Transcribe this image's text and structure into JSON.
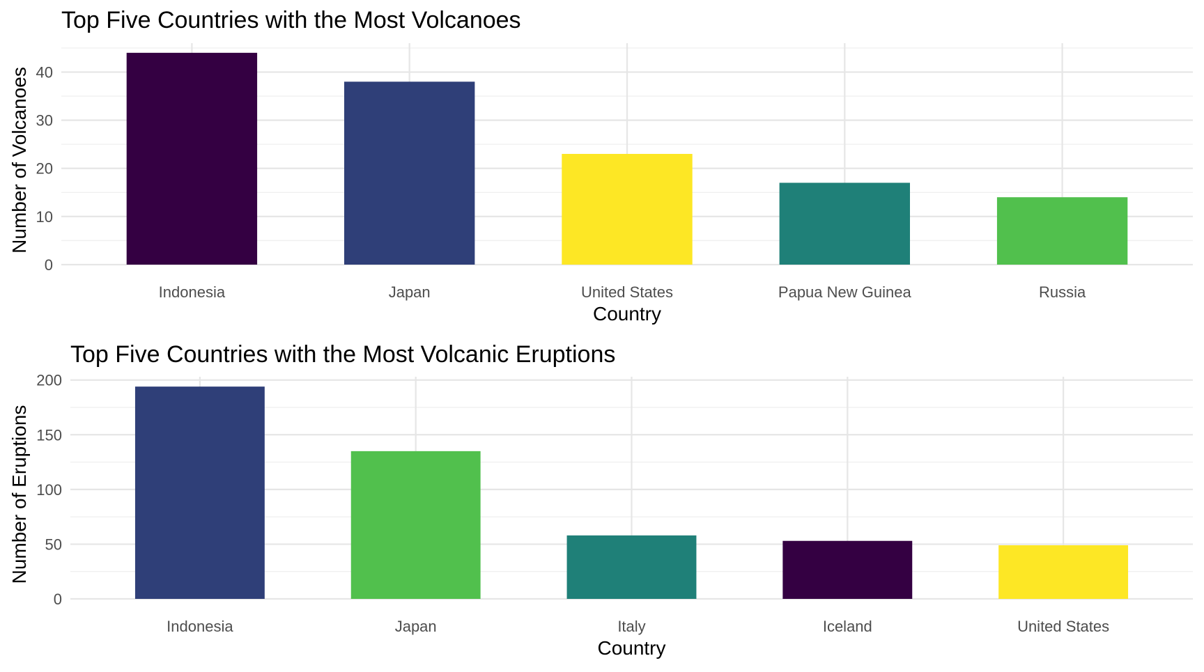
{
  "chart_data": [
    {
      "type": "bar",
      "title": "Top Five Countries with the Most Volcanoes",
      "xlabel": "Country",
      "ylabel": "Number of Volcanoes",
      "categories": [
        "Indonesia",
        "Japan",
        "United States",
        "Papua New Guinea",
        "Russia"
      ],
      "values": [
        44,
        38,
        23,
        17,
        14
      ],
      "colors": [
        "#340042",
        "#2f3f78",
        "#fde725",
        "#1f8078",
        "#51c04d"
      ],
      "ylim": [
        0,
        46
      ],
      "yticks": [
        0,
        10,
        20,
        30,
        40
      ],
      "ytick_labels": [
        "0",
        "10",
        "20",
        "30",
        "40"
      ],
      "grid": true,
      "legend": "none"
    },
    {
      "type": "bar",
      "title": "Top Five Countries with the Most Volcanic Eruptions",
      "xlabel": "Country",
      "ylabel": "Number of Eruptions",
      "categories": [
        "Indonesia",
        "Japan",
        "Italy",
        "Iceland",
        "United States"
      ],
      "values": [
        194,
        135,
        58,
        53,
        49
      ],
      "colors": [
        "#2f3f78",
        "#51c04d",
        "#1f8078",
        "#340042",
        "#fde725"
      ],
      "ylim": [
        0,
        203
      ],
      "yticks": [
        0,
        50,
        100,
        150,
        200
      ],
      "ytick_labels": [
        "0",
        "50",
        "100",
        "150",
        "200"
      ],
      "grid": true,
      "legend": "none"
    }
  ]
}
